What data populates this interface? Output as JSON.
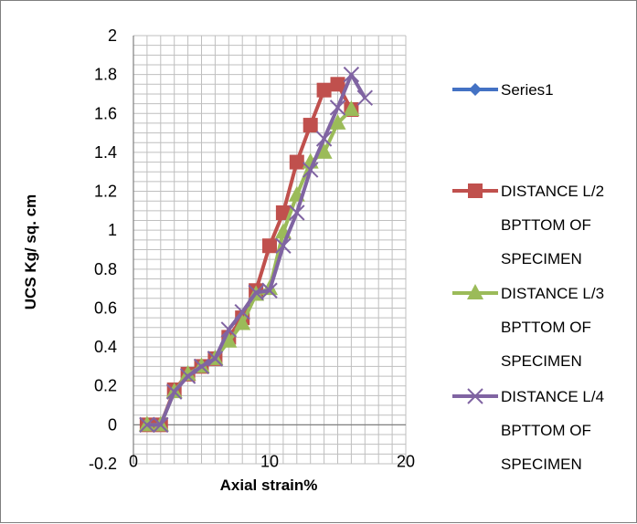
{
  "chart_data": {
    "type": "line",
    "xlabel": "Axial strain%",
    "ylabel": "UCS Kg/ sq. cm",
    "xlim": [
      0,
      20
    ],
    "ylim": [
      -0.2,
      2
    ],
    "xticks": [
      "0",
      "10",
      "20"
    ],
    "xtick_values": [
      0,
      10,
      20
    ],
    "yticks": [
      "-0.2",
      "0",
      "0.2",
      "0.4",
      "0.6",
      "0.8",
      "1",
      "1.2",
      "1.4",
      "1.6",
      "1.8",
      "2"
    ],
    "ytick_values": [
      -0.2,
      0,
      0.2,
      0.4,
      0.6,
      0.8,
      1,
      1.2,
      1.4,
      1.6,
      1.8,
      2
    ],
    "grid": true,
    "legend_position": "right",
    "series": [
      {
        "name": "Series1",
        "color": "#4472c4",
        "marker": "diamond",
        "x": [],
        "y": []
      },
      {
        "name": "DISTANCE L/2 BPTTOM OF SPECIMEN",
        "legend_lines": [
          "DISTANCE L/2",
          "BPTTOM OF",
          "SPECIMEN"
        ],
        "color": "#c0504d",
        "marker": "square",
        "x": [
          1,
          2,
          3,
          4,
          5,
          6,
          7,
          8,
          9,
          10,
          11,
          12,
          13,
          14,
          15,
          16
        ],
        "y": [
          0,
          0,
          0.18,
          0.26,
          0.3,
          0.34,
          0.45,
          0.55,
          0.69,
          0.92,
          1.09,
          1.35,
          1.54,
          1.72,
          1.75,
          1.62
        ]
      },
      {
        "name": "DISTANCE L/3 BPTTOM OF SPECIMEN",
        "legend_lines": [
          "DISTANCE L/3",
          "BPTTOM OF",
          "SPECIMEN"
        ],
        "color": "#9bbb59",
        "marker": "triangle",
        "x": [
          1,
          2,
          3,
          4,
          5,
          6,
          7,
          8,
          9,
          10,
          11,
          12,
          13,
          14,
          15,
          16
        ],
        "y": [
          0,
          0,
          0.17,
          0.26,
          0.3,
          0.34,
          0.43,
          0.52,
          0.67,
          0.7,
          0.99,
          1.18,
          1.35,
          1.4,
          1.55,
          1.62
        ]
      },
      {
        "name": "DISTANCE L/4 BPTTOM OF SPECIMEN",
        "legend_lines": [
          "DISTANCE L/4",
          "BPTTOM OF",
          "SPECIMEN"
        ],
        "color": "#8064a2",
        "marker": "x",
        "x": [
          1,
          2,
          3,
          4,
          5,
          6,
          7,
          8,
          9,
          10,
          11,
          12,
          13,
          14,
          15,
          16,
          17
        ],
        "y": [
          0,
          0,
          0.17,
          0.25,
          0.3,
          0.34,
          0.49,
          0.58,
          0.68,
          0.69,
          0.92,
          1.09,
          1.31,
          1.47,
          1.63,
          1.8,
          1.68
        ]
      }
    ]
  }
}
